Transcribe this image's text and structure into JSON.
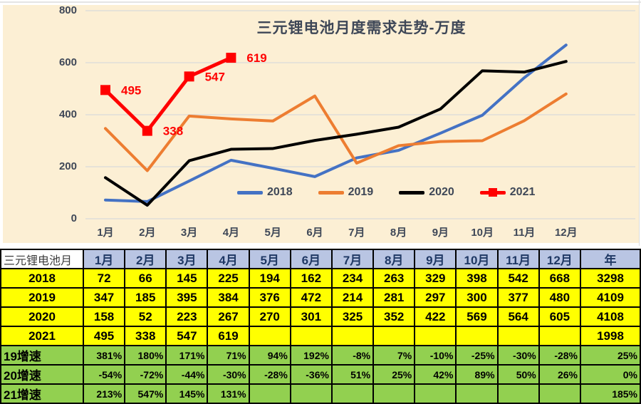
{
  "chart_data": {
    "type": "line",
    "title": "三元锂电池月度需求走势-万度",
    "categories": [
      "1月",
      "2月",
      "3月",
      "4月",
      "5月",
      "6月",
      "7月",
      "8月",
      "9月",
      "10月",
      "11月",
      "12月"
    ],
    "series": [
      {
        "name": "2018",
        "color": "#4472C4",
        "values": [
          72,
          66,
          145,
          225,
          194,
          162,
          234,
          263,
          329,
          398,
          542,
          668
        ]
      },
      {
        "name": "2019",
        "color": "#ED7D31",
        "values": [
          347,
          185,
          395,
          384,
          376,
          472,
          214,
          281,
          297,
          300,
          377,
          480
        ]
      },
      {
        "name": "2020",
        "color": "#000000",
        "values": [
          158,
          52,
          223,
          267,
          270,
          301,
          325,
          352,
          422,
          569,
          564,
          605
        ]
      },
      {
        "name": "2021",
        "color": "#FF0000",
        "marker": "square",
        "values": [
          495,
          338,
          547,
          619
        ],
        "data_labels": [
          "495",
          "338",
          "547",
          "619"
        ]
      }
    ],
    "ylim": [
      0,
      800
    ],
    "yticks": [
      0,
      200,
      400,
      600,
      800
    ],
    "grid": true,
    "legend_position": "bottom-inside",
    "plot_bg": "#FCEFD4",
    "gridline_color": "#D9D9D9",
    "axis_text_color": "#3E4757"
  },
  "table": {
    "header": [
      "三元锂电池月",
      "1月",
      "2月",
      "3月",
      "4月",
      "5月",
      "6月",
      "7月",
      "8月",
      "9月",
      "10月",
      "11月",
      "12月",
      "年"
    ],
    "rows": [
      {
        "label": "2018",
        "type": "year",
        "values": [
          "72",
          "66",
          "145",
          "225",
          "194",
          "162",
          "234",
          "263",
          "329",
          "398",
          "542",
          "668",
          "3298"
        ]
      },
      {
        "label": "2019",
        "type": "year",
        "values": [
          "347",
          "185",
          "395",
          "384",
          "376",
          "472",
          "214",
          "281",
          "297",
          "300",
          "377",
          "480",
          "4109"
        ]
      },
      {
        "label": "2020",
        "type": "year",
        "values": [
          "158",
          "52",
          "223",
          "267",
          "270",
          "301",
          "325",
          "352",
          "422",
          "569",
          "564",
          "605",
          "4108"
        ]
      },
      {
        "label": "2021",
        "type": "year",
        "values": [
          "495",
          "338",
          "547",
          "619",
          "",
          "",
          "",
          "",
          "",
          "",
          "",
          "",
          "1998"
        ]
      },
      {
        "label": "19增速",
        "type": "growth",
        "values": [
          "381%",
          "180%",
          "171%",
          "71%",
          "94%",
          "192%",
          "-8%",
          "7%",
          "-10%",
          "-25%",
          "-30%",
          "-28%",
          "25%"
        ]
      },
      {
        "label": "20增速",
        "type": "growth",
        "values": [
          "-54%",
          "-72%",
          "-44%",
          "-30%",
          "-28%",
          "-36%",
          "51%",
          "25%",
          "42%",
          "89%",
          "50%",
          "26%",
          "0%"
        ]
      },
      {
        "label": "21增速",
        "type": "growth",
        "values": [
          "213%",
          "547%",
          "145%",
          "131%",
          "",
          "",
          "",
          "",
          "",
          "",
          "",
          "",
          "185%"
        ]
      }
    ],
    "colors": {
      "year_bg": "#FFFF00",
      "growth_bg": "#92D050",
      "header_bg": "#B9C5E3",
      "header_text": "#1F3864",
      "border": "#000000"
    }
  }
}
